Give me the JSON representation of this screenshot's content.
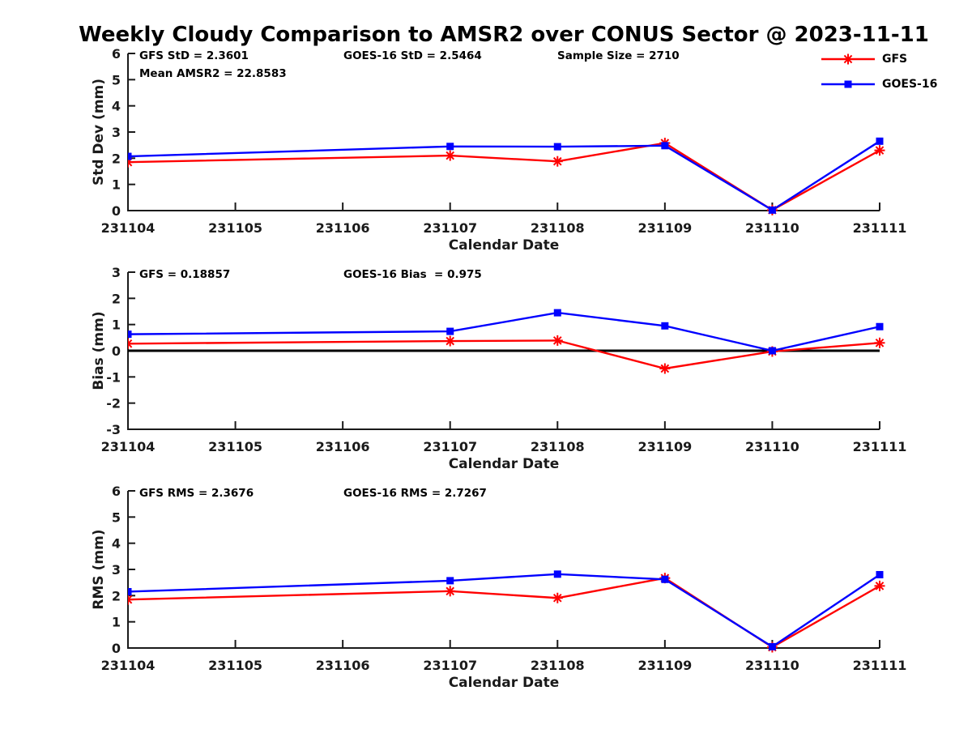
{
  "title": "Weekly Cloudy Comparison to AMSR2 over CONUS Sector @ 2023-11-11",
  "colors": {
    "gfs": "#ff0000",
    "goes16": "#0000ff",
    "axis": "#1a1a1a",
    "zero_line": "#000000",
    "background": "#ffffff"
  },
  "legend": [
    {
      "label": "GFS",
      "color_key": "gfs",
      "marker": "asterisk"
    },
    {
      "label": "GOES-16",
      "color_key": "goes16",
      "marker": "square"
    }
  ],
  "categories": [
    "231104",
    "231105",
    "231106",
    "231107",
    "231108",
    "231109",
    "231110",
    "231111"
  ],
  "chart_data": [
    {
      "type": "line",
      "name": "std-dev",
      "ylabel": "Std Dev (mm)",
      "xlabel": "Calendar Date",
      "ylim": [
        0,
        6
      ],
      "yticks": [
        0,
        1,
        2,
        3,
        4,
        5,
        6
      ],
      "grid": false,
      "zero_line": false,
      "x": [
        "231104",
        "231107",
        "231108",
        "231109",
        "231110",
        "231111"
      ],
      "series": [
        {
          "name": "GFS",
          "color_key": "gfs",
          "marker": "asterisk",
          "values": [
            1.85,
            2.1,
            1.88,
            2.58,
            0.02,
            2.3
          ]
        },
        {
          "name": "GOES-16",
          "color_key": "goes16",
          "marker": "square",
          "values": [
            2.07,
            2.45,
            2.44,
            2.48,
            0.02,
            2.65
          ]
        }
      ],
      "annotations": [
        {
          "text": "GFS StD = 2.3601",
          "col": 0,
          "row": 0
        },
        {
          "text": "Mean AMSR2 = 22.8583",
          "col": 0,
          "row": 1
        },
        {
          "text": "GOES-16 StD = 2.5464",
          "col": 1,
          "row": 0
        },
        {
          "text": "Sample Size = 2710",
          "col": 2,
          "row": 0
        }
      ]
    },
    {
      "type": "line",
      "name": "bias",
      "ylabel": "Bias (mm)",
      "xlabel": "Calendar Date",
      "ylim": [
        -3,
        3
      ],
      "yticks": [
        -3,
        -2,
        -1,
        0,
        1,
        2,
        3
      ],
      "grid": false,
      "zero_line": true,
      "x": [
        "231104",
        "231107",
        "231108",
        "231109",
        "231110",
        "231111"
      ],
      "series": [
        {
          "name": "GFS",
          "color_key": "gfs",
          "marker": "asterisk",
          "values": [
            0.27,
            0.37,
            0.39,
            -0.68,
            -0.03,
            0.3
          ]
        },
        {
          "name": "GOES-16",
          "color_key": "goes16",
          "marker": "square",
          "values": [
            0.63,
            0.74,
            1.45,
            0.95,
            0.0,
            0.92
          ]
        }
      ],
      "annotations": [
        {
          "text": "GFS = 0.18857",
          "col": 0,
          "row": 0
        },
        {
          "text": "GOES-16 Bias  = 0.975",
          "col": 1,
          "row": 0
        }
      ]
    },
    {
      "type": "line",
      "name": "rms",
      "ylabel": "RMS (mm)",
      "xlabel": "Calendar Date",
      "ylim": [
        0,
        6
      ],
      "yticks": [
        0,
        1,
        2,
        3,
        4,
        5,
        6
      ],
      "grid": false,
      "zero_line": false,
      "x": [
        "231104",
        "231107",
        "231108",
        "231109",
        "231110",
        "231111"
      ],
      "series": [
        {
          "name": "GFS",
          "color_key": "gfs",
          "marker": "asterisk",
          "values": [
            1.85,
            2.17,
            1.91,
            2.67,
            0.03,
            2.37
          ]
        },
        {
          "name": "GOES-16",
          "color_key": "goes16",
          "marker": "square",
          "values": [
            2.15,
            2.57,
            2.82,
            2.62,
            0.05,
            2.8
          ]
        }
      ],
      "annotations": [
        {
          "text": "GFS RMS = 2.3676",
          "col": 0,
          "row": 0
        },
        {
          "text": "GOES-16 RMS = 2.7267",
          "col": 1,
          "row": 0
        }
      ]
    }
  ]
}
